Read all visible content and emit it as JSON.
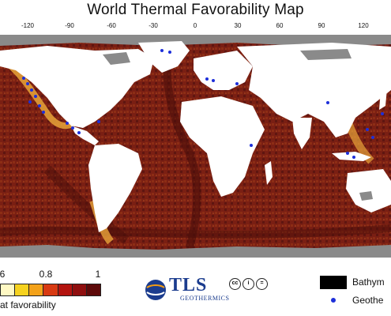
{
  "title": "World Thermal Favorability Map",
  "longitude_ticks": [
    "-120",
    "-90",
    "-60",
    "-30",
    "0",
    "30",
    "60",
    "90",
    "120"
  ],
  "legend": {
    "scale_labels": [
      "6",
      "0.8",
      "1"
    ],
    "caption": "at favorability",
    "colors": [
      "#fff9c4",
      "#f6d21f",
      "#f3a21a",
      "#d83a12",
      "#b3140f",
      "#8f0f0f",
      "#5e0a0a"
    ],
    "bathymetry_label": "Bathym",
    "geothermal_label": "Geothe"
  },
  "logo": {
    "text": "TLS",
    "subtext": "GEOTHERMICS",
    "license_icons": [
      "cc",
      "i",
      "="
    ]
  },
  "map_colors": {
    "ocean_deep": "#6e1a12",
    "ocean_mid": "#8d2a12",
    "shelf_high": "#e8a43a",
    "land": "#ffffff",
    "ice": "#8a8a8a",
    "geothermal_site": "#1d2fd9"
  }
}
